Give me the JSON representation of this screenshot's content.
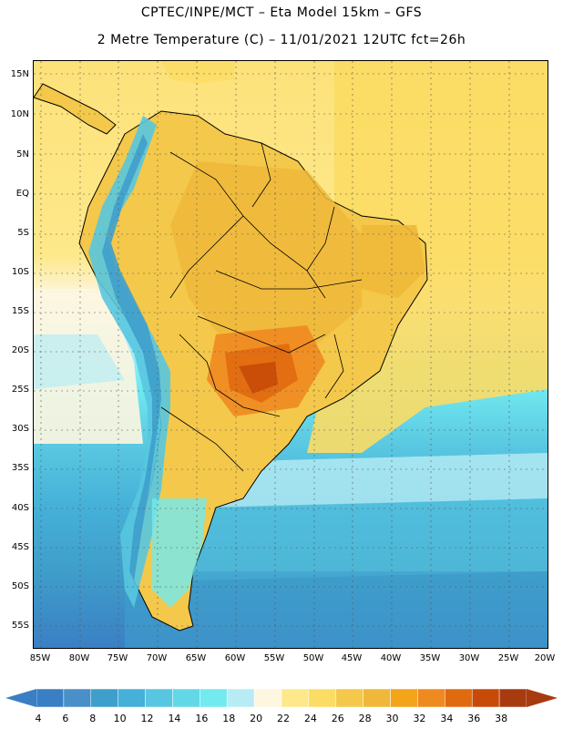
{
  "title_line1": "CPTEC/INPE/MCT –  Eta Model 15km – GFS",
  "title_line2": "2 Metre Temperature (C) – 11/01/2021 12UTC fct=26h",
  "lat_labels": [
    "15N",
    "10N",
    "5N",
    "EQ",
    "5S",
    "10S",
    "15S",
    "20S",
    "25S",
    "30S",
    "35S",
    "40S",
    "45S",
    "50S",
    "55S"
  ],
  "lon_labels": [
    "85W",
    "80W",
    "75W",
    "70W",
    "65W",
    "60W",
    "55W",
    "50W",
    "45W",
    "40W",
    "35W",
    "30W",
    "25W",
    "20W"
  ],
  "colorbar": {
    "levels": [
      "4",
      "6",
      "8",
      "10",
      "12",
      "14",
      "16",
      "18",
      "20",
      "22",
      "24",
      "26",
      "28",
      "30",
      "32",
      "34",
      "36",
      "38"
    ],
    "colors": [
      "#3a7fc4",
      "#4a90c8",
      "#3f9fcb",
      "#45b0d8",
      "#58c6e0",
      "#62d8e6",
      "#72eaf0",
      "#b8ecf4",
      "#fdf6e0",
      "#fde88a",
      "#fbdc64",
      "#f4c84a",
      "#efb83a",
      "#f3a418",
      "#ef8a20",
      "#e06a10",
      "#c84a08",
      "#a83a10"
    ]
  }
}
